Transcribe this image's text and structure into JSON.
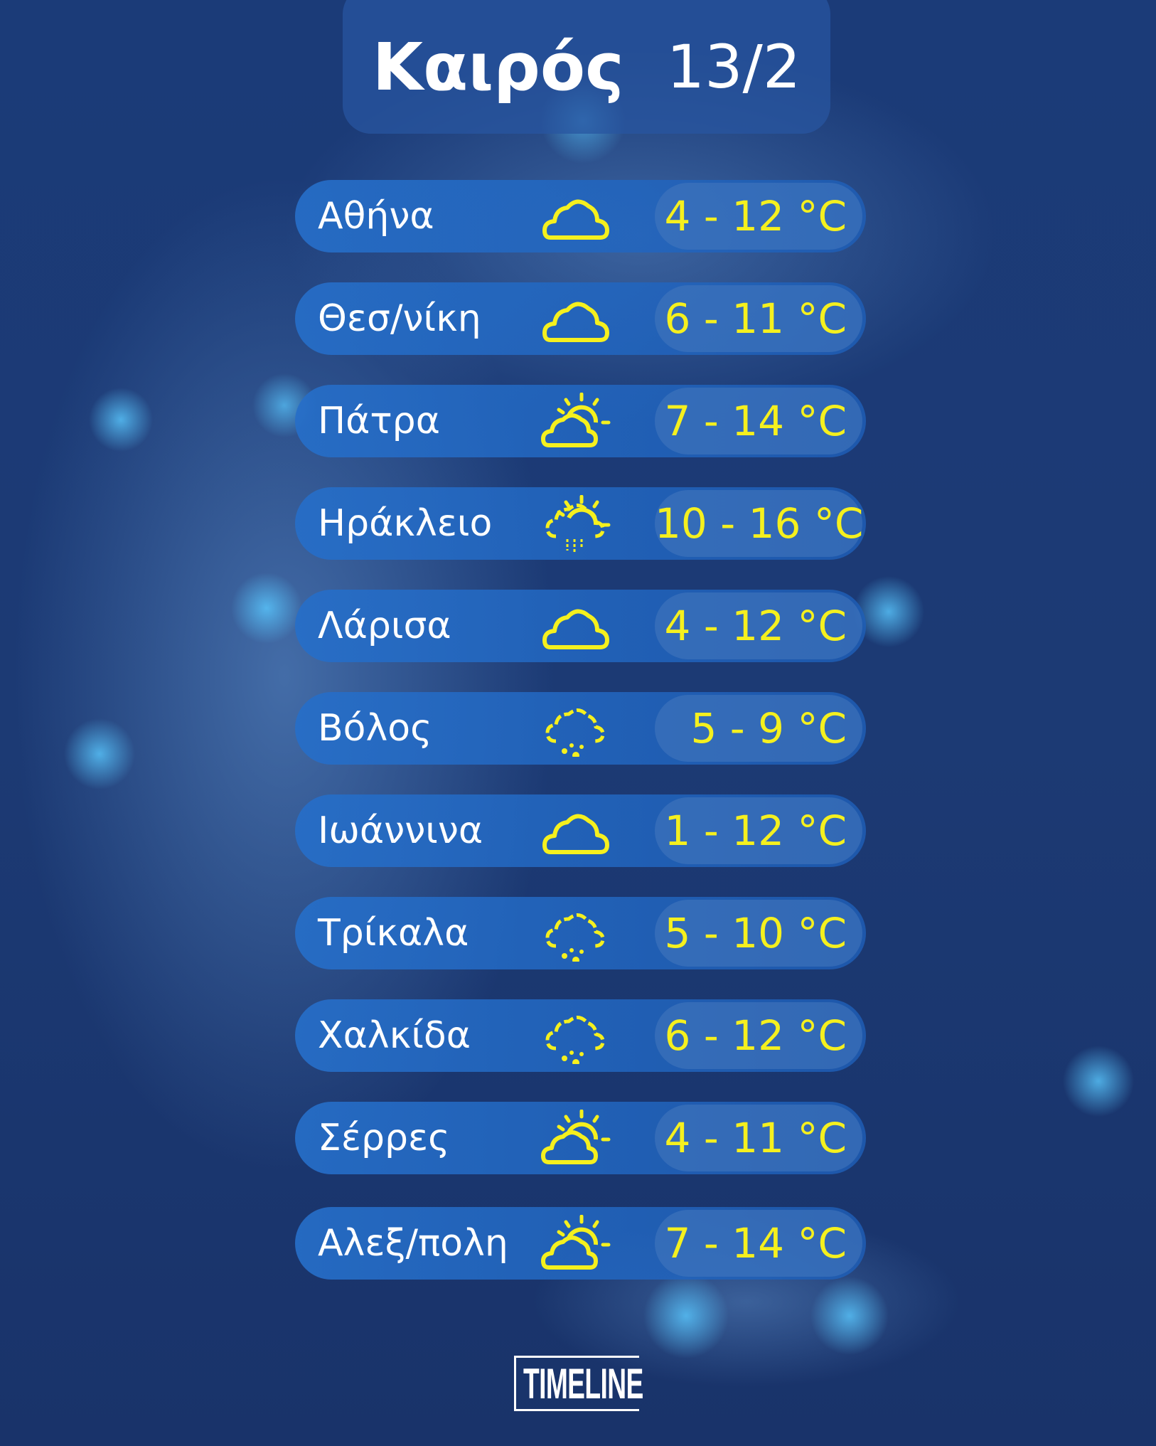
{
  "header": {
    "title": "Καιρός",
    "date": "13/2"
  },
  "colors": {
    "temperature": "#f5f01e",
    "background": "#1c3a74",
    "row": "#266ec8"
  },
  "forecasts": [
    {
      "city": "Αθήνα",
      "icon": "cloud-icon",
      "temp": "4 - 12 °C"
    },
    {
      "city": "Θεσ/νίκη",
      "icon": "cloud-icon",
      "temp": "6 - 11 °C"
    },
    {
      "city": "Πάτρα",
      "icon": "partly-sunny-icon",
      "temp": "7 - 14 °C"
    },
    {
      "city": "Ηράκλειο",
      "icon": "sun-rain-icon",
      "temp": "10 - 16 °C"
    },
    {
      "city": "Λάρισα",
      "icon": "cloud-icon",
      "temp": "4 - 12 °C"
    },
    {
      "city": "Βόλος",
      "icon": "rain-icon",
      "temp": "5 - 9 °C"
    },
    {
      "city": "Ιωάννινα",
      "icon": "cloud-icon",
      "temp": "1 - 12 °C"
    },
    {
      "city": "Τρίκαλα",
      "icon": "rain-icon",
      "temp": "5 - 10 °C"
    },
    {
      "city": "Χαλκίδα",
      "icon": "rain-icon",
      "temp": "6 - 12 °C"
    },
    {
      "city": "Σέρρες",
      "icon": "partly-sunny-icon",
      "temp": "4 - 11 °C"
    },
    {
      "city": "Αλεξ/πολη",
      "icon": "partly-sunny-icon",
      "temp": "7 - 14 °C"
    }
  ],
  "logo": {
    "text": "TIMELINE"
  }
}
